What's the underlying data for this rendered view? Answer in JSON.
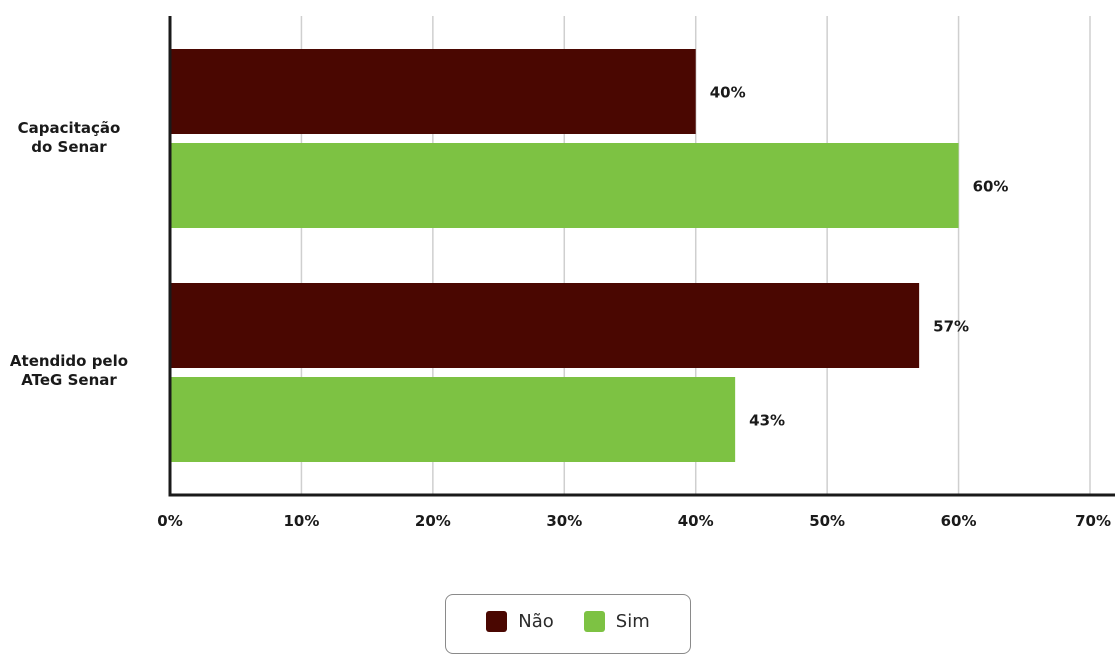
{
  "chart_data": {
    "type": "bar",
    "orientation": "horizontal",
    "categories": [
      "Capacitação\ndo Senar",
      "Atendido pelo\nATeG Senar"
    ],
    "series": [
      {
        "name": "Não",
        "values": [
          40,
          57
        ],
        "color": "#4a0701"
      },
      {
        "name": "Sim",
        "values": [
          60,
          43
        ],
        "color": "#7dc243"
      }
    ],
    "data_labels": [
      [
        "40%",
        "57%"
      ],
      [
        "60%",
        "43%"
      ]
    ],
    "xlim": [
      0,
      70
    ],
    "xticks": [
      0,
      10,
      20,
      30,
      40,
      50,
      60,
      70
    ],
    "xtick_labels": [
      "0%",
      "10%",
      "20%",
      "30%",
      "40%",
      "50%",
      "60%",
      "70%"
    ],
    "grid": "vertical",
    "legend_position": "bottom-center",
    "title": "",
    "xlabel": "",
    "ylabel": ""
  }
}
